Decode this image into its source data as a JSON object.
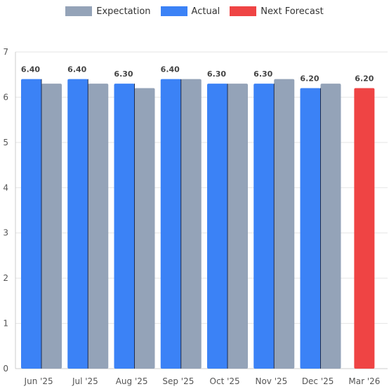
{
  "chart_data": {
    "type": "bar",
    "categories": [
      "Jun '25",
      "Jul '25",
      "Aug '25",
      "Sep '25",
      "Oct '25",
      "Nov '25",
      "Dec '25",
      "Mar '26"
    ],
    "series": [
      {
        "name": "Actual",
        "color": "#3b82f6",
        "values": [
          6.4,
          6.4,
          6.3,
          6.4,
          6.3,
          6.3,
          6.2,
          null
        ]
      },
      {
        "name": "Expectation",
        "color": "#94a3b8",
        "values": [
          6.3,
          6.3,
          6.2,
          6.4,
          6.3,
          6.4,
          6.3,
          null
        ]
      },
      {
        "name": "Next Forecast",
        "color": "#ef4444",
        "values": [
          null,
          null,
          null,
          null,
          null,
          null,
          null,
          6.2
        ]
      }
    ],
    "data_labels": [
      "6.40",
      "6.40",
      "6.30",
      "6.40",
      "6.30",
      "6.30",
      "6.20",
      "6.20"
    ],
    "ylim": [
      0,
      7
    ],
    "yticks": [
      0,
      1,
      2,
      3,
      4,
      5,
      6,
      7
    ],
    "grid": true,
    "legend_position": "top-center"
  },
  "legend": {
    "expectation": "Expectation",
    "actual": "Actual",
    "forecast": "Next Forecast",
    "colors": {
      "expectation": "#94a3b8",
      "actual": "#3b82f6",
      "forecast": "#ef4444"
    }
  }
}
